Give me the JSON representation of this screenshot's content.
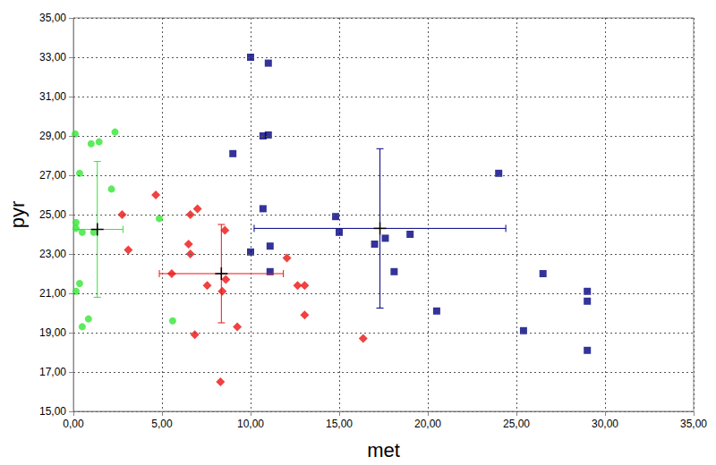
{
  "chart_data": {
    "type": "scatter",
    "x_label": "met",
    "y_label": "pyr",
    "xlim": [
      0,
      35
    ],
    "ylim": [
      15,
      35
    ],
    "xticks": [
      {
        "value": 0,
        "label": "0,00"
      },
      {
        "value": 5,
        "label": "5,00"
      },
      {
        "value": 10,
        "label": "10,00"
      },
      {
        "value": 15,
        "label": "15,00"
      },
      {
        "value": 20,
        "label": "20,00"
      },
      {
        "value": 25,
        "label": "25,00"
      },
      {
        "value": 30,
        "label": "30,00"
      },
      {
        "value": 35,
        "label": "35,00"
      }
    ],
    "yticks": [
      {
        "value": 15,
        "label": "15,00"
      },
      {
        "value": 17,
        "label": "17,00"
      },
      {
        "value": 19,
        "label": "19,00"
      },
      {
        "value": 21,
        "label": "21,00"
      },
      {
        "value": 23,
        "label": "23,00"
      },
      {
        "value": 25,
        "label": "25,00"
      },
      {
        "value": 27,
        "label": "27,00"
      },
      {
        "value": 29,
        "label": "29,00"
      },
      {
        "value": 31,
        "label": "31,00"
      },
      {
        "value": 33,
        "label": "33,00"
      },
      {
        "value": 35,
        "label": "35,00"
      }
    ],
    "grid": true,
    "series": [
      {
        "color": "#33e633",
        "marker": "circle",
        "x": [
          0.1,
          1.0,
          1.45,
          2.35,
          0.35,
          2.15,
          4.85,
          0.15,
          0.15,
          0.5,
          1.15,
          0.35,
          0.15,
          0.85,
          0.5,
          5.6
        ],
        "y": [
          29.1,
          28.6,
          28.7,
          29.2,
          27.1,
          26.3,
          24.8,
          24.6,
          24.3,
          24.1,
          24.1,
          21.5,
          21.1,
          19.7,
          19.3,
          19.6
        ],
        "mean": [
          1.35,
          24.25
        ],
        "x_error": 1.45,
        "y_error": 3.45
      },
      {
        "color": "#ee1111",
        "marker": "diamond",
        "x": [
          4.65,
          2.75,
          7.0,
          6.6,
          8.55,
          6.5,
          6.6,
          3.1,
          5.55,
          7.55,
          8.6,
          8.4,
          12.05,
          12.65,
          13.05,
          13.05,
          9.25,
          6.85,
          8.3,
          16.35
        ],
        "y": [
          26.0,
          25.0,
          25.3,
          25.0,
          24.2,
          23.5,
          23.0,
          23.2,
          22.0,
          21.4,
          21.7,
          21.1,
          22.8,
          21.4,
          21.4,
          19.9,
          19.3,
          18.9,
          16.5,
          18.7
        ],
        "mean": [
          8.35,
          22.0
        ],
        "x_error": 3.5,
        "y_error": 2.5
      },
      {
        "color": "#000080",
        "marker": "square",
        "x": [
          10.0,
          11.0,
          9.0,
          10.7,
          11.0,
          10.7,
          14.8,
          15.0,
          11.1,
          10.0,
          11.1,
          17.0,
          17.6,
          18.1,
          19.0,
          20.5,
          24.0,
          26.5,
          25.4,
          29.0,
          29.0,
          29.0
        ],
        "y": [
          33.0,
          32.7,
          28.1,
          29.0,
          29.05,
          25.3,
          24.9,
          24.1,
          23.4,
          23.1,
          22.1,
          23.5,
          23.8,
          22.1,
          24.0,
          20.1,
          27.1,
          22.0,
          19.1,
          21.1,
          20.6,
          18.1
        ],
        "mean": [
          17.3,
          24.3
        ],
        "x_error": 7.1,
        "y_error": 4.05
      }
    ]
  }
}
